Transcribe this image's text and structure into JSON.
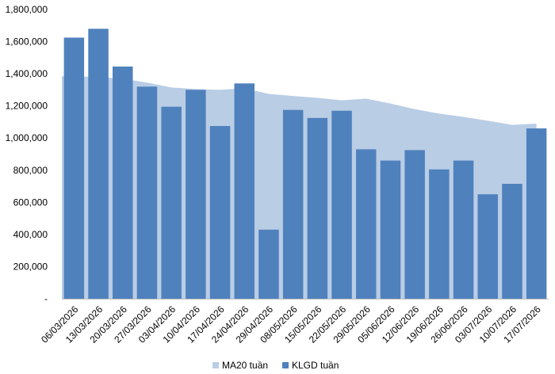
{
  "chart_data": {
    "type": "bar",
    "categories": [
      "06/03/2026",
      "13/03/2026",
      "20/03/2026",
      "27/03/2026",
      "03/04/2026",
      "10/04/2026",
      "17/04/2026",
      "24/04/2026",
      "29/04/2026",
      "08/05/2026",
      "15/05/2026",
      "22/05/2026",
      "29/05/2026",
      "05/06/2026",
      "12/06/2026",
      "19/06/2026",
      "26/06/2026",
      "03/07/2026",
      "10/07/2026",
      "17/07/2026"
    ],
    "series": [
      {
        "name": "MA20 tuần",
        "render": "area",
        "color": "#b9cde5",
        "values": [
          1385000,
          1380000,
          1370000,
          1345000,
          1315000,
          1305000,
          1300000,
          1310000,
          1275000,
          1262000,
          1250000,
          1235000,
          1245000,
          1215000,
          1180000,
          1152000,
          1132000,
          1108000,
          1082000,
          1090000
        ]
      },
      {
        "name": "KLGD tuần",
        "render": "bar",
        "color": "#4f81bd",
        "values": [
          1625000,
          1680000,
          1445000,
          1320000,
          1195000,
          1300000,
          1075000,
          1340000,
          430000,
          1175000,
          1125000,
          1170000,
          930000,
          860000,
          925000,
          805000,
          860000,
          650000,
          715000,
          1060000
        ]
      }
    ],
    "yticks": [
      "-",
      "200,000",
      "400,000",
      "600,000",
      "800,000",
      "1,000,000",
      "1,200,000",
      "1,400,000",
      "1,600,000",
      "1,800,000"
    ],
    "ylim": [
      0,
      1800000
    ],
    "grid": false,
    "legend": "bottom-center",
    "title": "",
    "xlabel": "",
    "ylabel": ""
  }
}
